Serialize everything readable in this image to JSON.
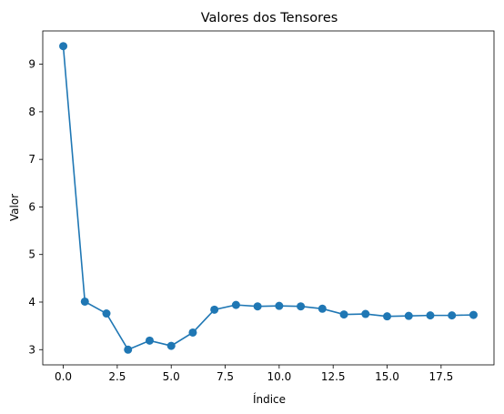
{
  "chart_data": {
    "type": "line",
    "title": "Valores dos Tensores",
    "xlabel": "Índice",
    "ylabel": "Valor",
    "xlim": [
      -0.95,
      19.95
    ],
    "ylim": [
      2.68,
      9.7
    ],
    "x_ticks": [
      0,
      2.5,
      5,
      7.5,
      10,
      12.5,
      15,
      17.5
    ],
    "x_tick_labels": [
      "0.0",
      "2.5",
      "5.0",
      "7.5",
      "10.0",
      "12.5",
      "15.0",
      "17.5"
    ],
    "y_ticks": [
      3,
      4,
      5,
      6,
      7,
      8,
      9
    ],
    "y_tick_labels": [
      "3",
      "4",
      "5",
      "6",
      "7",
      "8",
      "9"
    ],
    "grid": false,
    "series": [
      {
        "color": "#1f77b4",
        "marker": "circle",
        "x": [
          0,
          1,
          2,
          3,
          4,
          5,
          6,
          7,
          8,
          9,
          10,
          11,
          12,
          13,
          14,
          15,
          16,
          17,
          18,
          19
        ],
        "values": [
          9.38,
          4.01,
          3.76,
          3.0,
          3.19,
          3.08,
          3.36,
          3.84,
          3.94,
          3.91,
          3.92,
          3.91,
          3.86,
          3.74,
          3.75,
          3.7,
          3.71,
          3.72,
          3.72,
          3.73
        ]
      }
    ]
  }
}
